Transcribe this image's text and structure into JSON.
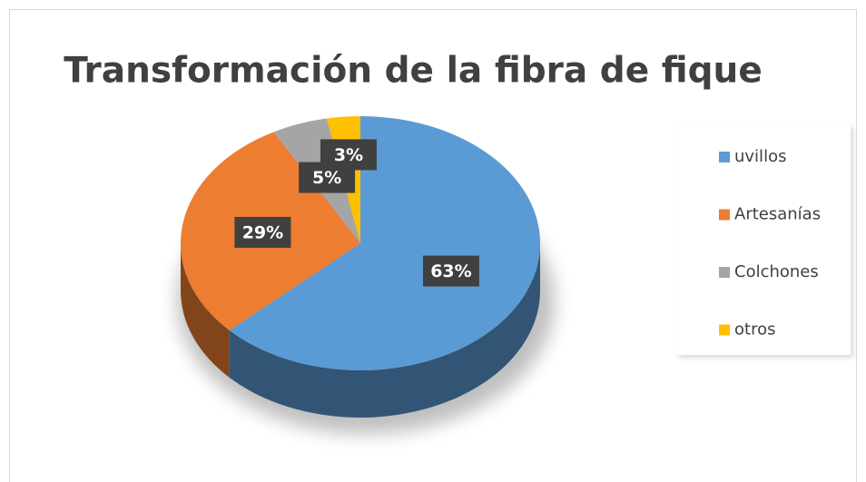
{
  "chart_data": {
    "type": "pie",
    "title": "Transformación de la fibra de fique",
    "categories": [
      "uvillos",
      "Artesanías",
      "Colchones",
      "otros"
    ],
    "values": [
      63,
      29,
      5,
      3
    ],
    "value_labels": [
      "63%",
      "29%",
      "5%",
      "3%"
    ],
    "colors": [
      "#5B9BD5",
      "#ED7D31",
      "#A5A5A5",
      "#FFC000"
    ],
    "legend": "right"
  }
}
